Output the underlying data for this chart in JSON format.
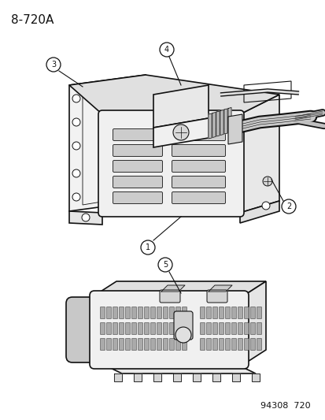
{
  "title": "8-720A",
  "footer": "94308  720",
  "background": "#ffffff",
  "line_color": "#111111",
  "title_fontsize": 11,
  "footer_fontsize": 8
}
